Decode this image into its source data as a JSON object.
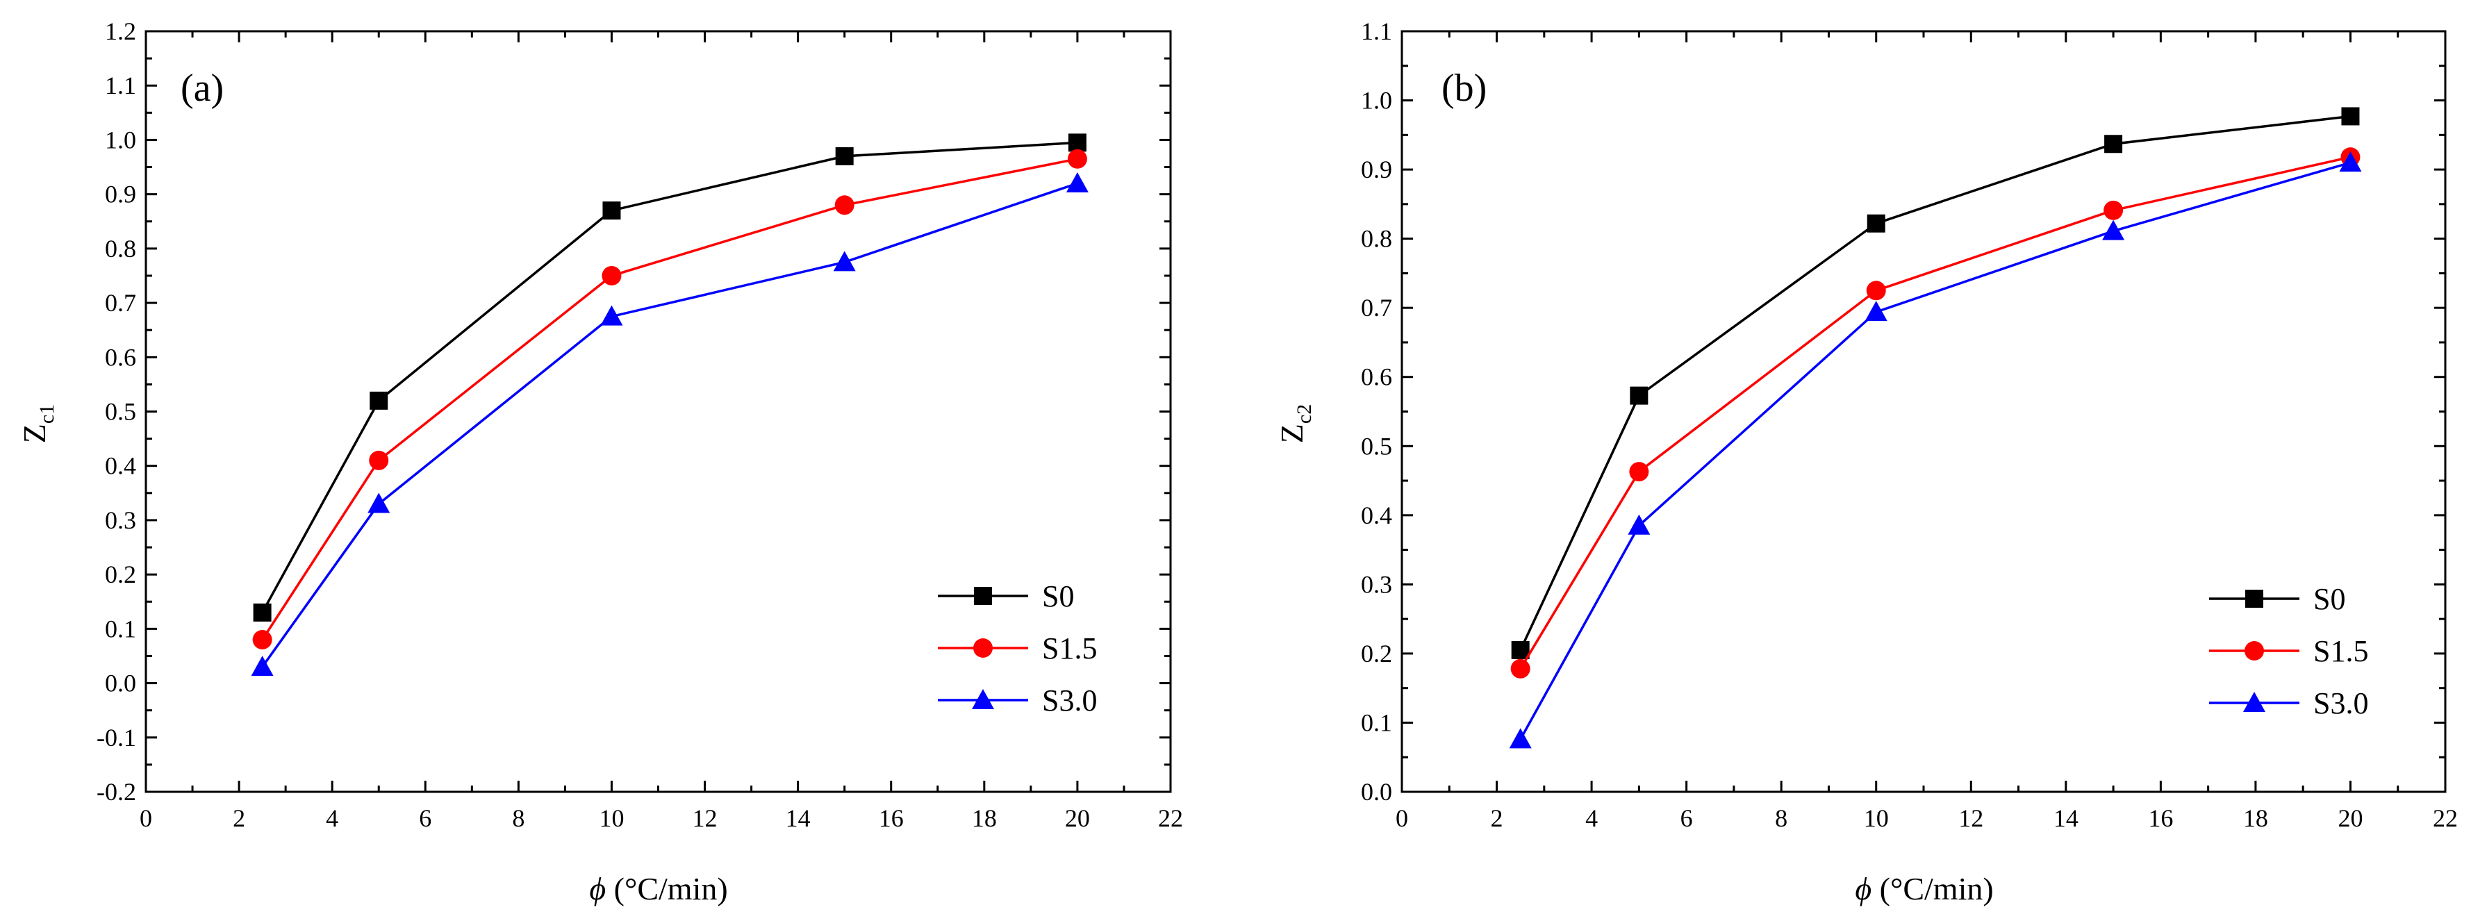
{
  "chart_data": [
    {
      "type": "line",
      "panel_label": "(a)",
      "xlabel_symbol": "ϕ",
      "xlabel_unit": " (°C/min)",
      "ylabel_main": "Z",
      "ylabel_sub": "c1",
      "xlim": [
        0,
        22
      ],
      "ylim": [
        -0.2,
        1.2
      ],
      "xticks": [
        "0",
        "2",
        "4",
        "6",
        "8",
        "10",
        "12",
        "14",
        "16",
        "18",
        "20",
        "22"
      ],
      "yticks": [
        "-0.2",
        "-0.1",
        "0.0",
        "0.1",
        "0.2",
        "0.3",
        "0.4",
        "0.5",
        "0.6",
        "0.7",
        "0.8",
        "0.9",
        "1.0",
        "1.1",
        "1.2"
      ],
      "x": [
        2.5,
        5,
        10,
        15,
        20
      ],
      "series": [
        {
          "name": "S0",
          "color": "#000000",
          "marker": "square",
          "values": [
            0.13,
            0.52,
            0.87,
            0.97,
            0.995
          ]
        },
        {
          "name": "S1.5",
          "color": "#ff0000",
          "marker": "circle",
          "values": [
            0.08,
            0.41,
            0.75,
            0.88,
            0.965
          ]
        },
        {
          "name": "S3.0",
          "color": "#0000ff",
          "marker": "triangle",
          "values": [
            0.03,
            0.33,
            0.675,
            0.775,
            0.92
          ]
        }
      ],
      "legend_position": "bottom-right"
    },
    {
      "type": "line",
      "panel_label": "(b)",
      "xlabel_symbol": "ϕ",
      "xlabel_unit": " (°C/min)",
      "ylabel_main": "Z",
      "ylabel_sub": "c2",
      "xlim": [
        0,
        22
      ],
      "ylim": [
        0.0,
        1.1
      ],
      "xticks": [
        "0",
        "2",
        "4",
        "6",
        "8",
        "10",
        "12",
        "14",
        "16",
        "18",
        "20",
        "22"
      ],
      "yticks": [
        "0.0",
        "0.1",
        "0.2",
        "0.3",
        "0.4",
        "0.5",
        "0.6",
        "0.7",
        "0.8",
        "0.9",
        "1.0",
        "1.1"
      ],
      "x": [
        2.5,
        5,
        10,
        15,
        20
      ],
      "series": [
        {
          "name": "S0",
          "color": "#000000",
          "marker": "square",
          "values": [
            0.205,
            0.573,
            0.822,
            0.937,
            0.977
          ]
        },
        {
          "name": "S1.5",
          "color": "#ff0000",
          "marker": "circle",
          "values": [
            0.178,
            0.463,
            0.725,
            0.841,
            0.918
          ]
        },
        {
          "name": "S3.0",
          "color": "#0000ff",
          "marker": "triangle",
          "values": [
            0.076,
            0.385,
            0.694,
            0.811,
            0.91
          ]
        }
      ],
      "legend_position": "bottom-right"
    }
  ]
}
